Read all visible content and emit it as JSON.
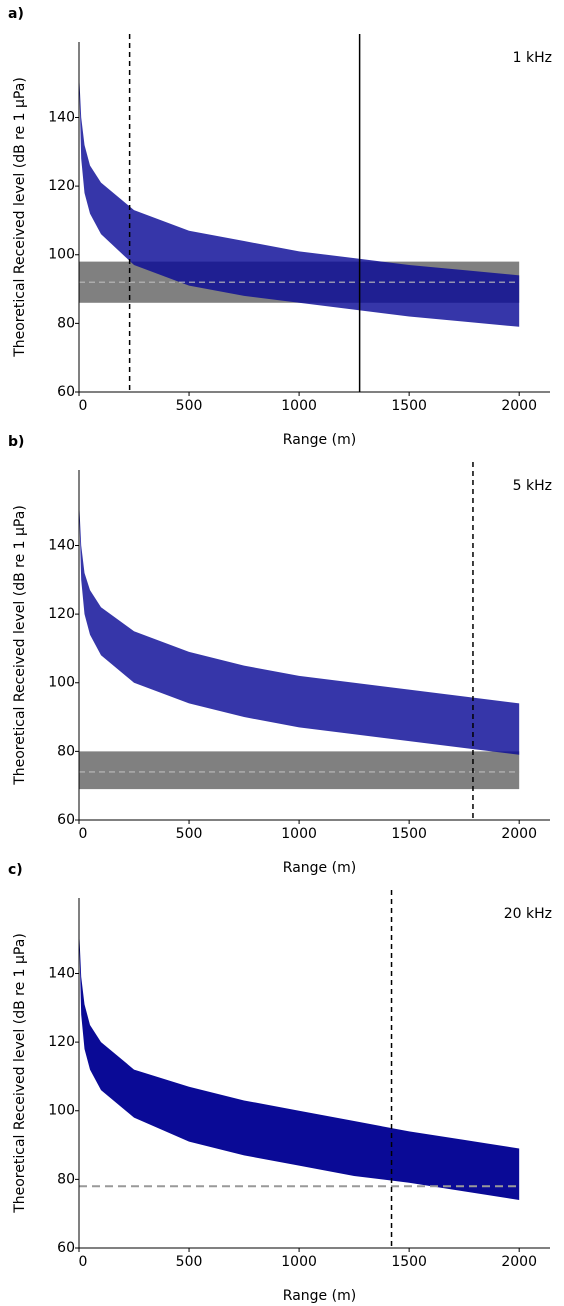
{
  "chart_data": [
    {
      "type": "band",
      "panel_label": "a)",
      "annotation": "1 kHz",
      "xlabel": "Range (m)",
      "ylabel": "Theoretical Received level (dB re 1 μPa)",
      "xlim": [
        0,
        2140
      ],
      "ylim": [
        60,
        162
      ],
      "xticks": [
        0,
        500,
        1000,
        1500,
        2000
      ],
      "yticks": [
        60,
        80,
        100,
        120,
        140
      ],
      "color": "#0a0a96",
      "x": [
        1,
        10,
        25,
        50,
        100,
        250,
        500,
        750,
        1000,
        1250,
        1500,
        1750,
        2000
      ],
      "upper": [
        152,
        140,
        132,
        126,
        121,
        113,
        107,
        104,
        101,
        99,
        97,
        95.5,
        94
      ],
      "lower": [
        150,
        128,
        118,
        112,
        106,
        97,
        91,
        88,
        86,
        84,
        82,
        80.5,
        79
      ],
      "noise_band": {
        "lower": 86,
        "upper": 98,
        "median": 92,
        "color": "#808080"
      },
      "vlines": [
        {
          "x": 230,
          "style": "dashed"
        },
        {
          "x": 1275,
          "style": "solid"
        }
      ]
    },
    {
      "type": "band",
      "panel_label": "b)",
      "annotation": "5 kHz",
      "xlabel": "Range (m)",
      "ylabel": "Theoretical Received level (dB re 1 μPa)",
      "xlim": [
        0,
        2140
      ],
      "ylim": [
        60,
        162
      ],
      "xticks": [
        0,
        500,
        1000,
        1500,
        2000
      ],
      "yticks": [
        60,
        80,
        100,
        120,
        140
      ],
      "color": "#0a0a96",
      "x": [
        1,
        10,
        25,
        50,
        100,
        250,
        500,
        750,
        1000,
        1250,
        1500,
        1750,
        2000
      ],
      "upper": [
        152,
        140,
        132,
        127,
        122,
        115,
        109,
        105,
        102,
        100,
        98,
        96,
        94
      ],
      "lower": [
        150,
        130,
        120,
        114,
        108,
        100,
        94,
        90,
        87,
        85,
        83,
        81,
        79
      ],
      "noise_band": {
        "lower": 69,
        "upper": 80,
        "median": 74,
        "color": "#808080"
      },
      "vlines": [
        {
          "x": 1790,
          "style": "dashed"
        }
      ]
    },
    {
      "type": "band",
      "panel_label": "c)",
      "annotation": "20 kHz",
      "xlabel": "Range (m)",
      "ylabel": "Theoretical Received level (dB re 1 μPa)",
      "xlim": [
        0,
        2140
      ],
      "ylim": [
        60,
        162
      ],
      "xticks": [
        0,
        500,
        1000,
        1500,
        2000
      ],
      "yticks": [
        60,
        80,
        100,
        120,
        140
      ],
      "color": "#0a0a96",
      "x": [
        1,
        10,
        25,
        50,
        100,
        250,
        500,
        750,
        1000,
        1250,
        1500,
        1750,
        2000
      ],
      "upper": [
        152,
        139,
        131,
        125,
        120,
        112,
        107,
        103,
        100,
        97,
        94,
        91.5,
        89
      ],
      "lower": [
        150,
        128,
        118,
        112,
        106,
        98,
        91,
        87,
        84,
        81,
        79,
        76.5,
        74
      ],
      "noise_level": {
        "value": 78,
        "color": "#999999"
      },
      "vlines": [
        {
          "x": 1420,
          "style": "dashed"
        }
      ]
    }
  ]
}
